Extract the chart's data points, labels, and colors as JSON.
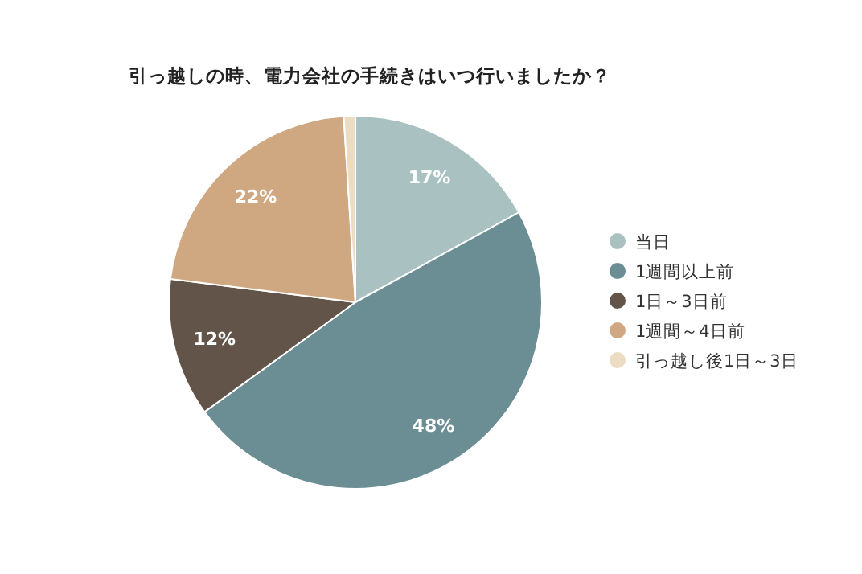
{
  "chart_data": {
    "type": "pie",
    "title": "引っ越しの時、電力会社の手続きはいつ行いましたか？",
    "categories": [
      "当日",
      "1週間以上前",
      "1日～3日前",
      "1週間～4日前",
      "引っ越し後1日～3日"
    ],
    "values": [
      17,
      48,
      12,
      22,
      1
    ],
    "colors": [
      "#a9c1c0",
      "#6a8e93",
      "#625448",
      "#cfa882",
      "#ecdcc3"
    ],
    "value_labels": [
      "17%",
      "48%",
      "12%",
      "22%",
      null
    ],
    "legend": "right"
  }
}
